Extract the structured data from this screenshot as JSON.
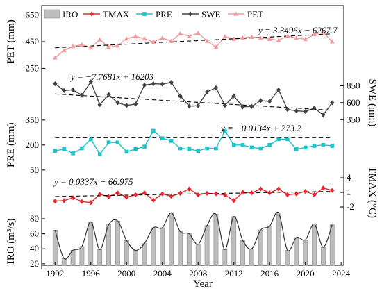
{
  "chart_data": {
    "type": "line",
    "x_label": "Year",
    "x_ticks": [
      1992,
      1996,
      2000,
      2004,
      2008,
      2012,
      2016,
      2020,
      2024
    ],
    "years": [
      1992,
      1993,
      1994,
      1995,
      1996,
      1997,
      1998,
      1999,
      2000,
      2001,
      2002,
      2003,
      2004,
      2005,
      2006,
      2007,
      2008,
      2009,
      2010,
      2011,
      2012,
      2013,
      2014,
      2015,
      2016,
      2017,
      2018,
      2019,
      2020,
      2021,
      2022,
      2023
    ],
    "legend": [
      {
        "key": "IRO",
        "label": "IRO",
        "color": "#b3b3b3",
        "style": "bar"
      },
      {
        "key": "TMAX",
        "label": "TMAX",
        "color": "#e8262c",
        "style": "diamond"
      },
      {
        "key": "PRE",
        "label": "PRE",
        "color": "#1dc5c9",
        "style": "square"
      },
      {
        "key": "SWE",
        "label": "SWE",
        "color": "#444444",
        "style": "diamond"
      },
      {
        "key": "PET",
        "label": "PET",
        "color": "#f49a9a",
        "style": "triangle"
      }
    ],
    "panels": [
      {
        "key": "PET",
        "axis_label": "PET (mm)",
        "axis_side": "left",
        "ylim": [
          200,
          700
        ],
        "ticks": [
          250,
          450,
          650
        ],
        "color": "#f49a9a",
        "marker": "triangle",
        "values": [
          330,
          385,
          415,
          428,
          405,
          465,
          410,
          420,
          472,
          490,
          472,
          448,
          478,
          455,
          510,
          490,
          515,
          455,
          410,
          488,
          470,
          478,
          485,
          478,
          470,
          460,
          492,
          478,
          468,
          505,
          520,
          450
        ],
        "equation": "y = 3.3496x − 6267.7",
        "trend": [
          3.3496,
          -6267.7
        ]
      },
      {
        "key": "SWE",
        "axis_label": "SWE (mm)",
        "axis_side": "right",
        "ylim": [
          250,
          1050
        ],
        "ticks": [
          350,
          600,
          850
        ],
        "color": "#444444",
        "marker": "diamond",
        "values": [
          880,
          780,
          790,
          710,
          910,
          570,
          720,
          600,
          560,
          580,
          860,
          880,
          875,
          900,
          700,
          550,
          555,
          760,
          820,
          560,
          700,
          540,
          545,
          630,
          620,
          790,
          500,
          480,
          470,
          520,
          420,
          600
        ],
        "equation": "y = −7.7681x + 16203",
        "trend": [
          -7.7681,
          16203
        ]
      },
      {
        "key": "PRE",
        "axis_label": "PRE (mm)",
        "axis_side": "left",
        "ylim": [
          20,
          370
        ],
        "ticks": [
          50,
          200,
          350
        ],
        "color": "#1dc5c9",
        "marker": "square",
        "values": [
          165,
          175,
          150,
          180,
          235,
          145,
          215,
          215,
          160,
          175,
          190,
          285,
          240,
          225,
          180,
          175,
          165,
          180,
          180,
          285,
          200,
          200,
          185,
          180,
          200,
          235,
          235,
          175,
          185,
          195,
          200,
          195
        ],
        "equation": "y = −0.0134x + 273.2",
        "trend": [
          -0.0134,
          273.2
        ]
      },
      {
        "key": "TMAX",
        "axis_label": "TMAX (°C)",
        "axis_side": "right",
        "ylim": [
          -4,
          6
        ],
        "ticks": [
          -2,
          1,
          4
        ],
        "color": "#e8262c",
        "marker": "diamond",
        "values": [
          -0.8,
          -0.7,
          -0.1,
          -0.9,
          -1.1,
          0.6,
          0.1,
          0.9,
          0.0,
          0.5,
          0.9,
          -0.6,
          0.7,
          0.2,
          0.8,
          1.7,
          0.5,
          0.8,
          0.7,
          0.5,
          -0.7,
          1.0,
          0.9,
          1.7,
          0.9,
          1.7,
          0.5,
          0.7,
          1.2,
          0.5,
          1.9,
          1.4
        ],
        "equation": "y = 0.0337x − 66.975",
        "trend": [
          0.0337,
          -66.975
        ]
      },
      {
        "key": "IRO",
        "axis_label": "IRO (m³/s)",
        "axis_side": "left",
        "ylim": [
          18,
          92
        ],
        "ticks": [
          20,
          40,
          60,
          80
        ],
        "color": "#b3b3b3",
        "marker": "bar",
        "values": [
          65,
          27,
          38,
          43,
          76,
          39,
          72,
          77,
          51,
          38,
          47,
          68,
          68,
          88,
          63,
          60,
          46,
          71,
          86,
          39,
          83,
          51,
          40,
          65,
          70,
          88,
          38,
          55,
          52,
          73,
          42,
          72
        ]
      }
    ]
  }
}
